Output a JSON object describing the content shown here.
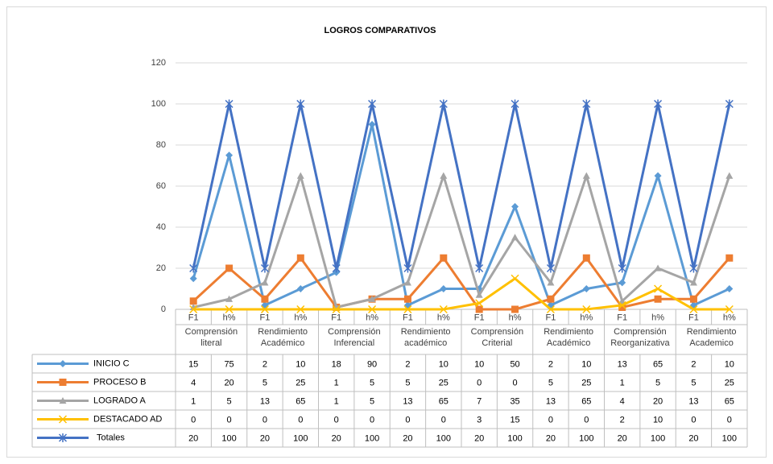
{
  "chart_data": {
    "type": "line",
    "title": "LOGROS COMPARATIVOS",
    "categories": [
      "F1",
      "h%",
      "F1",
      "h%",
      "F1",
      "h%",
      "F1",
      "h%",
      "F1",
      "h%",
      "F1",
      "h%",
      "F1",
      "h%",
      "F1",
      "h%"
    ],
    "groups": [
      "Comprensión literal",
      "Rendimiento Académico",
      "Comprensión Inferencial",
      "Rendimiento académico",
      "Comprensión Criterial",
      "Rendimiento Académico",
      "Comprensión Reorganizativa",
      "Rendimiento Academico"
    ],
    "series": [
      {
        "name": "INICIO C",
        "color": "#5b9bd5",
        "marker": "diamond",
        "values": [
          15,
          75,
          2,
          10,
          18,
          90,
          2,
          10,
          10,
          50,
          2,
          10,
          13,
          65,
          2,
          10
        ]
      },
      {
        "name": "PROCESO B",
        "color": "#ed7d31",
        "marker": "square",
        "values": [
          4,
          20,
          5,
          25,
          1,
          5,
          5,
          25,
          0,
          0,
          5,
          25,
          1,
          5,
          5,
          25
        ]
      },
      {
        "name": "LOGRADO A",
        "color": "#a5a5a5",
        "marker": "triangle",
        "values": [
          1,
          5,
          13,
          65,
          1,
          5,
          13,
          65,
          7,
          35,
          13,
          65,
          4,
          20,
          13,
          65
        ]
      },
      {
        "name": "DESTACADO AD",
        "color": "#ffc000",
        "marker": "x",
        "values": [
          0,
          0,
          0,
          0,
          0,
          0,
          0,
          0,
          3,
          15,
          0,
          0,
          2,
          10,
          0,
          0
        ]
      },
      {
        "name": "Totales",
        "color": "#4472c4",
        "marker": "star",
        "values": [
          20,
          100,
          20,
          100,
          20,
          100,
          20,
          100,
          20,
          100,
          20,
          100,
          20,
          100,
          20,
          100
        ]
      }
    ],
    "ylim": [
      0,
      120
    ],
    "yticks": [
      0,
      20,
      40,
      60,
      80,
      100,
      120
    ],
    "grid": true
  }
}
